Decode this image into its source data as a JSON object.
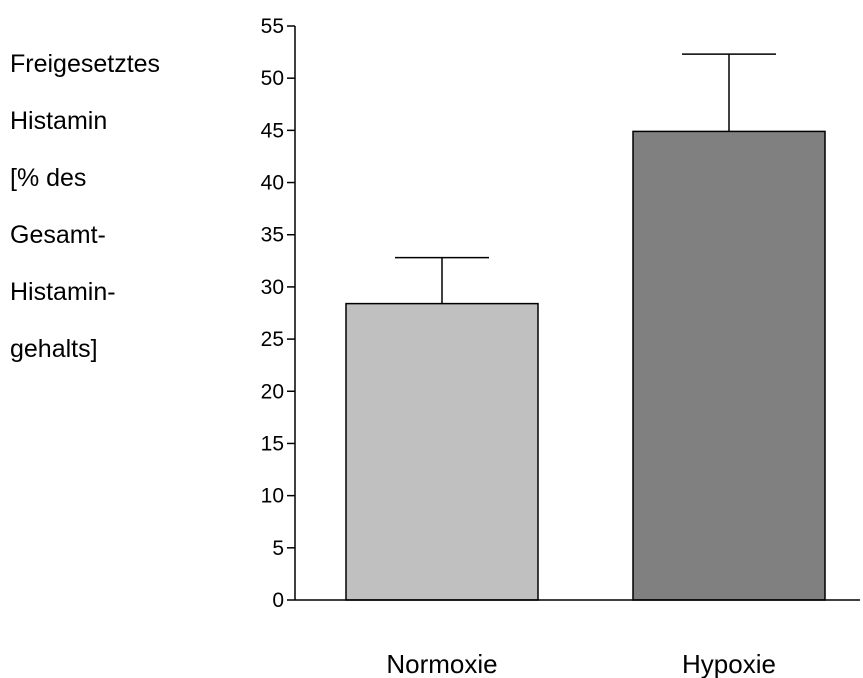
{
  "chart_data": {
    "type": "bar",
    "title": "",
    "xlabel": "",
    "ylabel_lines": [
      "Freigesetztes",
      "Histamin",
      "[% des",
      "Gesamt-",
      "Histamin-",
      "gehalts]"
    ],
    "categories": [
      "Normoxie",
      "Hypoxie"
    ],
    "values": [
      28.4,
      44.9
    ],
    "error_plus": [
      4.4,
      7.4
    ],
    "colors": [
      "#c0c0c0",
      "#808080"
    ],
    "ylim": [
      0,
      55
    ],
    "yticks": [
      0,
      5,
      10,
      15,
      20,
      25,
      30,
      35,
      40,
      45,
      50,
      55
    ],
    "grid": false,
    "legend": "none"
  }
}
